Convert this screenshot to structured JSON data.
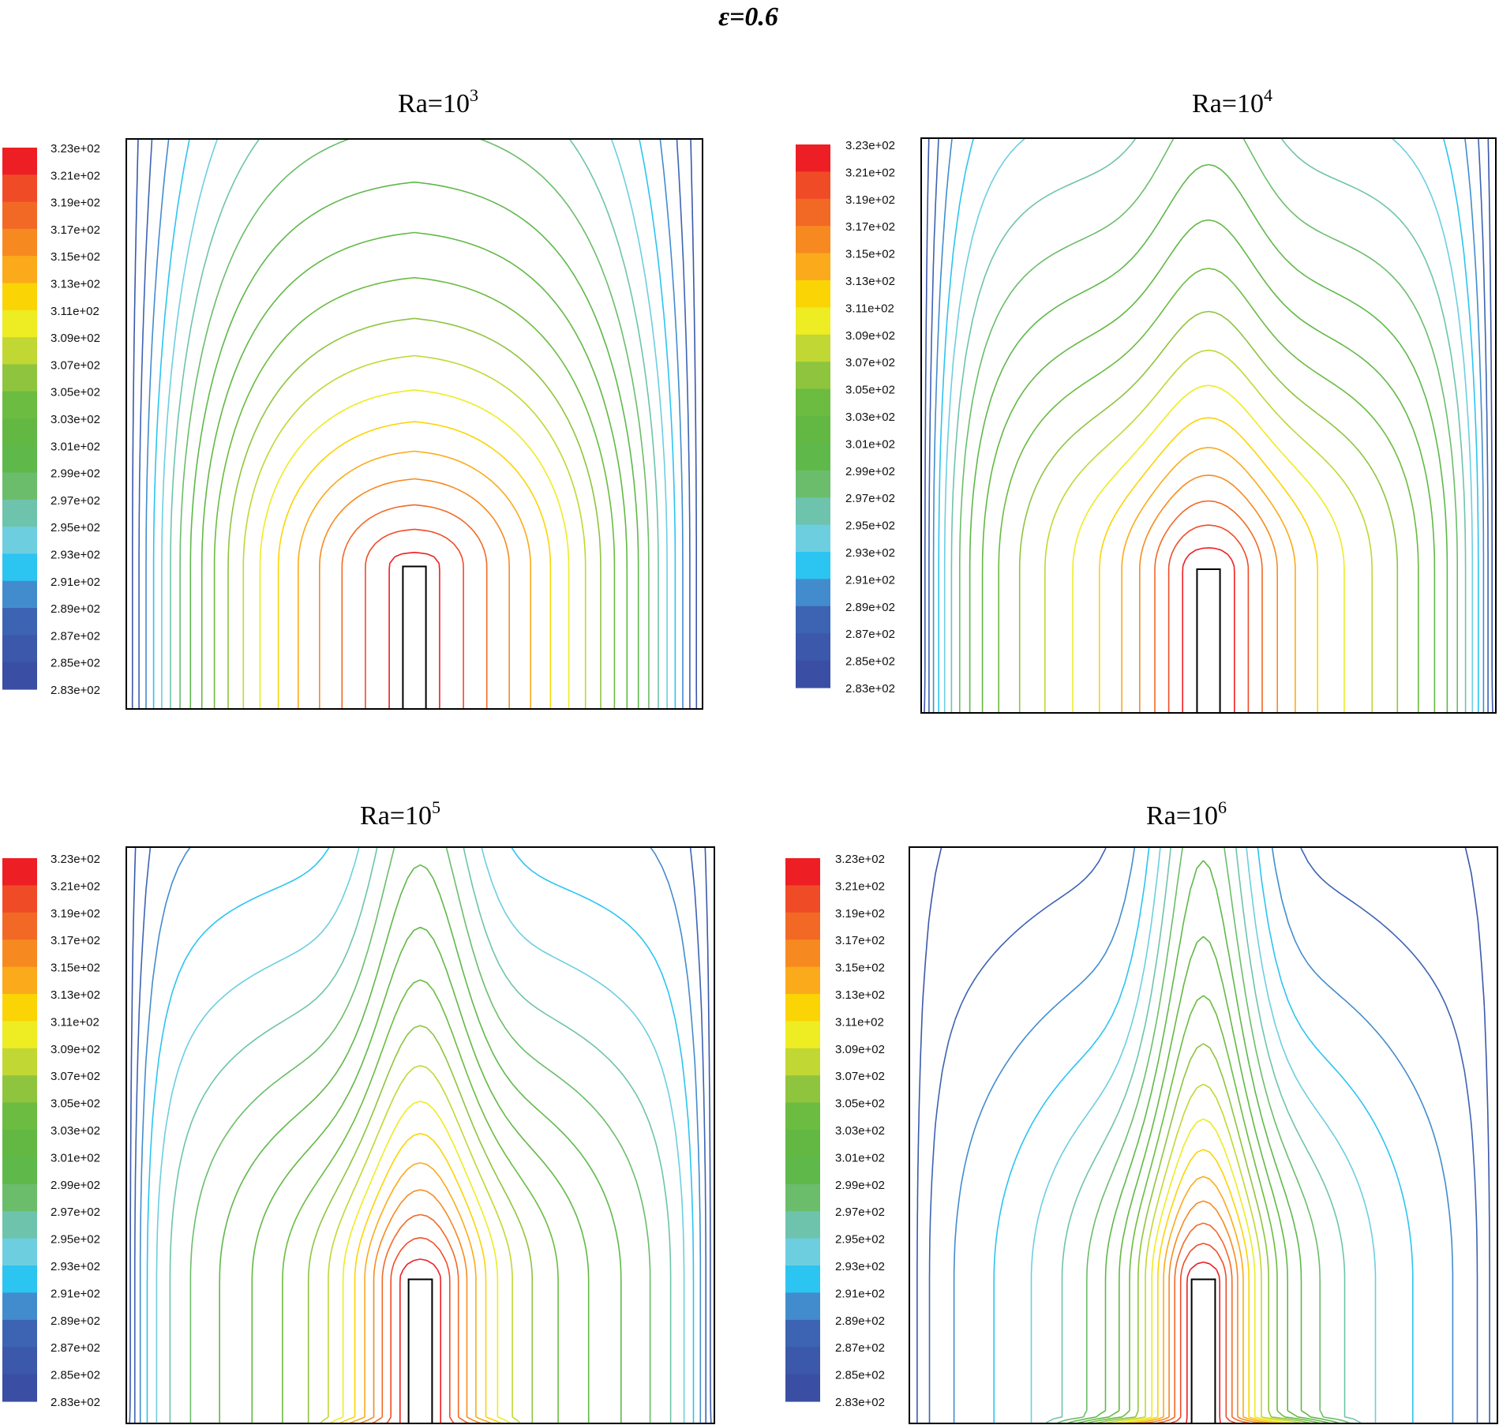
{
  "figure_title": "ε=0.6",
  "colors": {
    "scale": [
      "#3a4fa3",
      "#3b58ab",
      "#3d63b3",
      "#428cce",
      "#2cc4f1",
      "#6dcee0",
      "#6ec3ac",
      "#6bbd6b",
      "#5fb84a",
      "#63b844",
      "#6bbc40",
      "#8fc43e",
      "#c1d733",
      "#eeec23",
      "#fbd405",
      "#fbaa1b",
      "#f68a21",
      "#f26926",
      "#f04b27",
      "#ed1f24"
    ],
    "frame": "#000000"
  },
  "chart_data": [
    {
      "type": "contour",
      "title": "Ra=10",
      "title_exponent": "3",
      "colorbar": {
        "min": 283,
        "max": 323,
        "step": 2,
        "tick_labels": [
          "3.23e+02",
          "3.21e+02",
          "3.19e+02",
          "3.17e+02",
          "3.15e+02",
          "3.13e+02",
          "3.11e+02",
          "3.09e+02",
          "3.07e+02",
          "3.05e+02",
          "3.03e+02",
          "3.01e+02",
          "2.99e+02",
          "2.97e+02",
          "2.95e+02",
          "2.93e+02",
          "2.91e+02",
          "2.89e+02",
          "2.87e+02",
          "2.85e+02",
          "2.83e+02"
        ]
      },
      "field": {
        "variable": "temperature",
        "t_hot": 323,
        "t_cold": 283,
        "heater": {
          "center": 0.5,
          "half_width": 0.02,
          "height": 0.25
        }
      },
      "isotherms": [
        285,
        287,
        289,
        291,
        293,
        295,
        297,
        299,
        301,
        303,
        305,
        307,
        309,
        311,
        313,
        315,
        317,
        319,
        321
      ],
      "ra": 1000
    },
    {
      "type": "contour",
      "title": "Ra=10",
      "title_exponent": "4",
      "colorbar": {
        "min": 283,
        "max": 323,
        "step": 2,
        "tick_labels": [
          "3.23e+02",
          "3.21e+02",
          "3.19e+02",
          "3.17e+02",
          "3.15e+02",
          "3.13e+02",
          "3.11e+02",
          "3.09e+02",
          "3.07e+02",
          "3.05e+02",
          "3.03e+02",
          "3.01e+02",
          "2.99e+02",
          "2.97e+02",
          "2.95e+02",
          "2.93e+02",
          "2.91e+02",
          "2.89e+02",
          "2.87e+02",
          "2.85e+02",
          "2.83e+02"
        ]
      },
      "field": {
        "variable": "temperature",
        "t_hot": 323,
        "t_cold": 283,
        "heater": {
          "center": 0.5,
          "half_width": 0.02,
          "height": 0.25
        }
      },
      "isotherms": [
        285,
        287,
        289,
        291,
        293,
        295,
        297,
        299,
        301,
        303,
        305,
        307,
        309,
        311,
        313,
        315,
        317,
        319,
        321
      ],
      "ra": 10000
    },
    {
      "type": "contour",
      "title": "Ra=10",
      "title_exponent": "5",
      "colorbar": {
        "min": 283,
        "max": 323,
        "step": 2,
        "tick_labels": [
          "3.23e+02",
          "3.21e+02",
          "3.19e+02",
          "3.17e+02",
          "3.15e+02",
          "3.13e+02",
          "3.11e+02",
          "3.09e+02",
          "3.07e+02",
          "3.05e+02",
          "3.03e+02",
          "3.01e+02",
          "2.99e+02",
          "2.97e+02",
          "2.95e+02",
          "2.93e+02",
          "2.91e+02",
          "2.89e+02",
          "2.87e+02",
          "2.85e+02",
          "2.83e+02"
        ]
      },
      "field": {
        "variable": "temperature",
        "t_hot": 323,
        "t_cold": 283,
        "heater": {
          "center": 0.5,
          "half_width": 0.02,
          "height": 0.25
        }
      },
      "isotherms": [
        285,
        287,
        289,
        291,
        293,
        295,
        297,
        299,
        301,
        303,
        305,
        307,
        309,
        311,
        313,
        315,
        317,
        319,
        321
      ],
      "ra": 100000
    },
    {
      "type": "contour",
      "title": "Ra=10",
      "title_exponent": "6",
      "colorbar": {
        "min": 283,
        "max": 323,
        "step": 2,
        "tick_labels": [
          "3.23e+02",
          "3.21e+02",
          "3.19e+02",
          "3.17e+02",
          "3.15e+02",
          "3.13e+02",
          "3.11e+02",
          "3.09e+02",
          "3.07e+02",
          "3.05e+02",
          "3.03e+02",
          "3.01e+02",
          "2.99e+02",
          "2.97e+02",
          "2.95e+02",
          "2.93e+02",
          "2.91e+02",
          "2.89e+02",
          "2.87e+02",
          "2.85e+02",
          "2.83e+02"
        ]
      },
      "field": {
        "variable": "temperature",
        "t_hot": 323,
        "t_cold": 283,
        "heater": {
          "center": 0.5,
          "half_width": 0.02,
          "height": 0.25
        }
      },
      "isotherms": [
        285,
        287,
        289,
        291,
        293,
        295,
        297,
        299,
        301,
        303,
        305,
        307,
        309,
        311,
        313,
        315,
        317,
        319,
        321
      ],
      "ra": 1000000
    }
  ]
}
